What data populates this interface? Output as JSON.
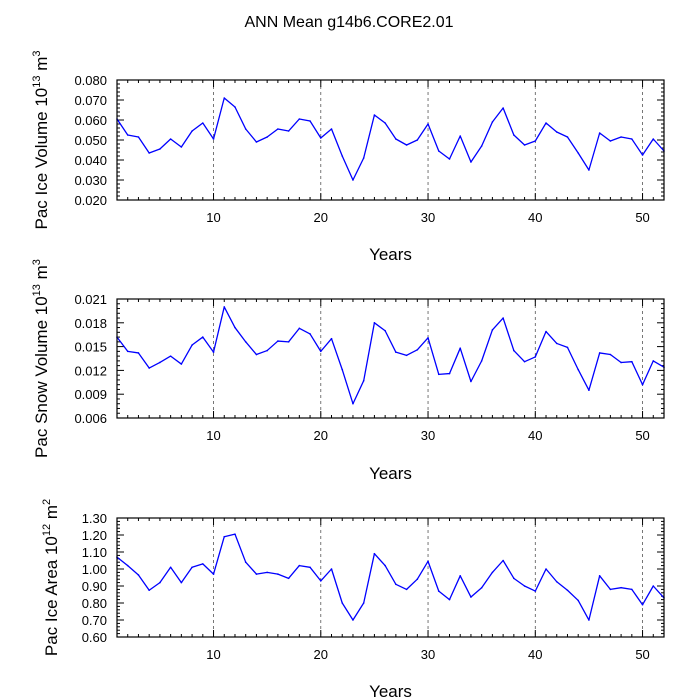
{
  "figure": {
    "title": "ANN Mean g14b6.CORE2.01"
  },
  "chart_data": [
    {
      "type": "line",
      "title": "",
      "xlabel": "Years",
      "ylabel": "Pac Ice Volume 10",
      "ylabel_sup1": "13",
      "ylabel_unit": " m",
      "ylabel_sup2": "3",
      "xlim": [
        1,
        52
      ],
      "ylim": [
        0.02,
        0.08
      ],
      "grid": "vertical dashed at 10, 20, 30, 40, 50",
      "xticks": [
        10,
        20,
        30,
        40,
        50
      ],
      "xtick_labels": [
        "10",
        "20",
        "30",
        "40",
        "50"
      ],
      "yticks": [
        0.02,
        0.03,
        0.04,
        0.05,
        0.06,
        0.07,
        0.08
      ],
      "ytick_labels": [
        "0.020",
        "0.030",
        "0.040",
        "0.050",
        "0.060",
        "0.070",
        "0.080"
      ],
      "line_color": "#0000ff",
      "series": [
        {
          "name": "Pac Ice Volume",
          "x": [
            1,
            2,
            3,
            4,
            5,
            6,
            7,
            8,
            9,
            10,
            11,
            12,
            13,
            14,
            15,
            16,
            17,
            18,
            19,
            20,
            21,
            22,
            23,
            24,
            25,
            26,
            27,
            28,
            29,
            30,
            31,
            32,
            33,
            34,
            35,
            36,
            37,
            38,
            39,
            40,
            41,
            42,
            43,
            44,
            45,
            46,
            47,
            48,
            49,
            50,
            51,
            52
          ],
          "y": [
            0.0605,
            0.0525,
            0.0515,
            0.0435,
            0.0455,
            0.0505,
            0.0465,
            0.0545,
            0.0585,
            0.0505,
            0.071,
            0.0665,
            0.0555,
            0.049,
            0.0515,
            0.0555,
            0.0545,
            0.0605,
            0.0595,
            0.051,
            0.0555,
            0.042,
            0.03,
            0.041,
            0.0625,
            0.0585,
            0.0505,
            0.0475,
            0.05,
            0.058,
            0.0445,
            0.0405,
            0.052,
            0.039,
            0.047,
            0.059,
            0.066,
            0.0525,
            0.0475,
            0.0495,
            0.0585,
            0.054,
            0.0515,
            0.0435,
            0.035,
            0.0535,
            0.0495,
            0.0515,
            0.0505,
            0.0425,
            0.0505,
            0.0445
          ]
        }
      ]
    },
    {
      "type": "line",
      "title": "",
      "xlabel": "Years",
      "ylabel": "Pac Snow Volume 10",
      "ylabel_sup1": "13",
      "ylabel_unit": " m",
      "ylabel_sup2": "3",
      "xlim": [
        1,
        52
      ],
      "ylim": [
        0.006,
        0.021
      ],
      "grid": "vertical dashed at 10, 20, 30, 40, 50",
      "xticks": [
        10,
        20,
        30,
        40,
        50
      ],
      "xtick_labels": [
        "10",
        "20",
        "30",
        "40",
        "50"
      ],
      "yticks": [
        0.006,
        0.009,
        0.012,
        0.015,
        0.018,
        0.021
      ],
      "ytick_labels": [
        "0.006",
        "0.009",
        "0.012",
        "0.015",
        "0.018",
        "0.021"
      ],
      "line_color": "#0000ff",
      "series": [
        {
          "name": "Pac Snow Volume",
          "x": [
            1,
            2,
            3,
            4,
            5,
            6,
            7,
            8,
            9,
            10,
            11,
            12,
            13,
            14,
            15,
            16,
            17,
            18,
            19,
            20,
            21,
            22,
            23,
            24,
            25,
            26,
            27,
            28,
            29,
            30,
            31,
            32,
            33,
            34,
            35,
            36,
            37,
            38,
            39,
            40,
            41,
            42,
            43,
            44,
            45,
            46,
            47,
            48,
            49,
            50,
            51,
            52
          ],
          "y": [
            0.0162,
            0.0144,
            0.0142,
            0.0123,
            0.013,
            0.0138,
            0.0128,
            0.0152,
            0.0162,
            0.0143,
            0.02,
            0.0174,
            0.0156,
            0.014,
            0.0145,
            0.0157,
            0.0156,
            0.0173,
            0.0166,
            0.0144,
            0.016,
            0.0121,
            0.0078,
            0.0107,
            0.018,
            0.017,
            0.0143,
            0.0139,
            0.0146,
            0.0161,
            0.0115,
            0.0116,
            0.0148,
            0.0106,
            0.0132,
            0.0171,
            0.0186,
            0.0145,
            0.0131,
            0.0137,
            0.0169,
            0.0154,
            0.0149,
            0.0121,
            0.0095,
            0.0142,
            0.014,
            0.013,
            0.0131,
            0.0102,
            0.0132,
            0.0124
          ]
        }
      ]
    },
    {
      "type": "line",
      "title": "",
      "xlabel": "Years",
      "ylabel": "Pac Ice Area 10",
      "ylabel_sup1": "12",
      "ylabel_unit": " m",
      "ylabel_sup2": "2",
      "xlim": [
        1,
        52
      ],
      "ylim": [
        0.6,
        1.3
      ],
      "grid": "vertical dashed at 10, 20, 30, 40, 50",
      "xticks": [
        10,
        20,
        30,
        40,
        50
      ],
      "xtick_labels": [
        "10",
        "20",
        "30",
        "40",
        "50"
      ],
      "yticks": [
        0.6,
        0.7,
        0.8,
        0.9,
        1.0,
        1.1,
        1.2,
        1.3
      ],
      "ytick_labels": [
        "0.60",
        "0.70",
        "0.80",
        "0.90",
        "1.00",
        "1.10",
        "1.20",
        "1.30"
      ],
      "line_color": "#0000ff",
      "series": [
        {
          "name": "Pac Ice Area",
          "x": [
            1,
            2,
            3,
            4,
            5,
            6,
            7,
            8,
            9,
            10,
            11,
            12,
            13,
            14,
            15,
            16,
            17,
            18,
            19,
            20,
            21,
            22,
            23,
            24,
            25,
            26,
            27,
            28,
            29,
            30,
            31,
            32,
            33,
            34,
            35,
            36,
            37,
            38,
            39,
            40,
            41,
            42,
            43,
            44,
            45,
            46,
            47,
            48,
            49,
            50,
            51,
            52
          ],
          "y": [
            1.07,
            1.02,
            0.965,
            0.875,
            0.92,
            1.01,
            0.92,
            1.01,
            1.03,
            0.97,
            1.19,
            1.205,
            1.04,
            0.97,
            0.98,
            0.97,
            0.945,
            1.02,
            1.01,
            0.93,
            1.0,
            0.8,
            0.7,
            0.8,
            1.09,
            1.02,
            0.91,
            0.88,
            0.94,
            1.045,
            0.87,
            0.82,
            0.96,
            0.835,
            0.89,
            0.98,
            1.05,
            0.945,
            0.9,
            0.87,
            1.0,
            0.925,
            0.875,
            0.815,
            0.7,
            0.96,
            0.88,
            0.89,
            0.88,
            0.79,
            0.9,
            0.83
          ]
        }
      ]
    }
  ]
}
